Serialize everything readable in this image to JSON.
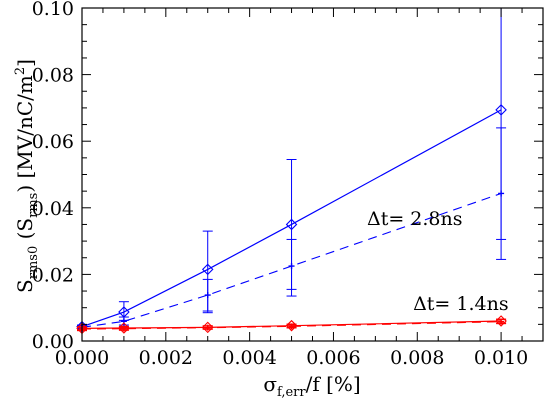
{
  "chart_data": {
    "type": "line",
    "xlabel": {
      "main": "σ",
      "sub": "f,err",
      "rest": "/f [%]"
    },
    "ylabel": {
      "main": "S",
      "sub": "rms0",
      "mid": " (S",
      "sub2": "rms",
      "rest": ") [MV/nC/m",
      "sup": "2",
      "end": "]"
    },
    "xlim": [
      0.0,
      0.011
    ],
    "ylim": [
      0.0,
      0.1
    ],
    "xticks": [
      "0.000",
      "0.002",
      "0.004",
      "0.006",
      "0.008",
      "0.010"
    ],
    "yticks": [
      "0.00",
      "0.02",
      "0.04",
      "0.06",
      "0.08",
      "0.10"
    ],
    "grid": false,
    "series": [
      {
        "key": "s_rms0_2p8",
        "color": "#0000ff",
        "linestyle": "solid",
        "marker": "diamond",
        "x": [
          0.0,
          0.001,
          0.003,
          0.005,
          0.01
        ],
        "y": [
          0.0043,
          0.0087,
          0.0215,
          0.035,
          0.0694
        ],
        "err_low": [
          0.0038,
          0.0062,
          0.009,
          0.0155,
          0.0245
        ],
        "err_high": [
          0.0048,
          0.0118,
          0.033,
          0.0545,
          0.1
        ]
      },
      {
        "key": "s_rms_2p8",
        "color": "#0000ff",
        "linestyle": "dashed",
        "marker": "plus",
        "x": [
          0.0,
          0.001,
          0.003,
          0.005,
          0.01
        ],
        "y": [
          0.0041,
          0.0059,
          0.0138,
          0.0225,
          0.0443
        ],
        "err_low": [
          0.0036,
          0.0048,
          0.0085,
          0.0135,
          0.0305
        ],
        "err_high": [
          0.0046,
          0.0072,
          0.0185,
          0.0305,
          0.064
        ]
      },
      {
        "key": "s_rms0_1p4",
        "color": "#ff0000",
        "linestyle": "solid",
        "marker": "diamond",
        "x": [
          0.0,
          0.001,
          0.003,
          0.005,
          0.01
        ],
        "y": [
          0.0038,
          0.0039,
          0.0041,
          0.0046,
          0.006
        ],
        "err_low": [
          0.0033,
          0.0034,
          0.0036,
          0.0041,
          0.0054
        ],
        "err_high": [
          0.0043,
          0.0044,
          0.0046,
          0.0051,
          0.0066
        ]
      },
      {
        "key": "s_rms_1p4",
        "color": "#ff0000",
        "linestyle": "dashed",
        "marker": "plus",
        "x": [
          0.0,
          0.001,
          0.003,
          0.005,
          0.01
        ],
        "y": [
          0.0036,
          0.0037,
          0.004,
          0.0044,
          0.0058
        ],
        "err_low": [
          0.0031,
          0.0032,
          0.0035,
          0.0039,
          0.0052
        ],
        "err_high": [
          0.0041,
          0.0042,
          0.0045,
          0.0049,
          0.0064
        ]
      }
    ],
    "annotations": [
      {
        "text": "Δt= 2.8ns",
        "x": 0.0068,
        "y": 0.0348
      },
      {
        "text": "Δt= 1.4ns",
        "x": 0.0079,
        "y": 0.0093
      }
    ]
  }
}
